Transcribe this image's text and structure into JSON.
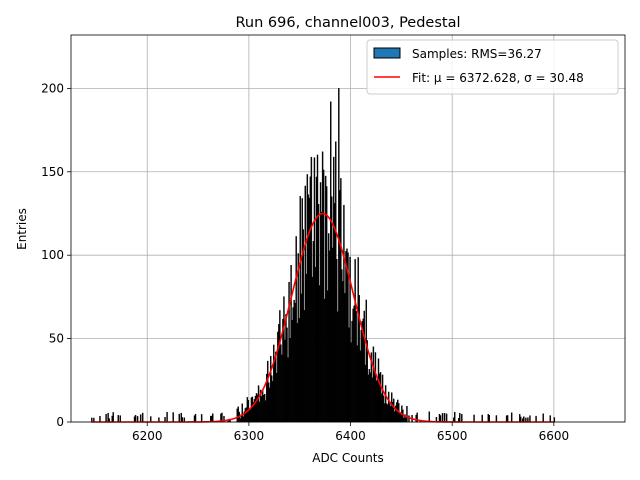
{
  "chart_data": {
    "type": "bar",
    "title": "Run 696, channel003, Pedestal",
    "xlabel": "ADC Counts",
    "ylabel": "Entries",
    "xlim": [
      6125,
      6670
    ],
    "ylim": [
      0,
      232
    ],
    "xticks": [
      6200,
      6300,
      6400,
      6500,
      6600
    ],
    "yticks": [
      0,
      50,
      100,
      150,
      200
    ],
    "grid": true,
    "legend_position": "top-right",
    "series": [
      {
        "name": "Samples: RMS=36.27",
        "kind": "histogram",
        "color": "#1f77b4",
        "edgecolor": "#000000",
        "bin_width": 1,
        "rms": 36.27,
        "x_range": [
          6145,
          6600
        ]
      },
      {
        "name": "Fit: μ = 6372.628, σ = 30.48",
        "kind": "gaussian_fit",
        "color": "#ff0000",
        "mu": 6372.628,
        "sigma": 30.48,
        "amplitude": 125,
        "x_range": [
          6145,
          6600
        ]
      }
    ],
    "notable_spikes": [
      {
        "x": 6352,
        "value": 134
      },
      {
        "x": 6360,
        "value": 147
      },
      {
        "x": 6372,
        "value": 162
      },
      {
        "x": 6380,
        "value": 192
      },
      {
        "x": 6385,
        "value": 168
      },
      {
        "x": 6388,
        "value": 200
      },
      {
        "x": 6393,
        "value": 130
      }
    ]
  }
}
